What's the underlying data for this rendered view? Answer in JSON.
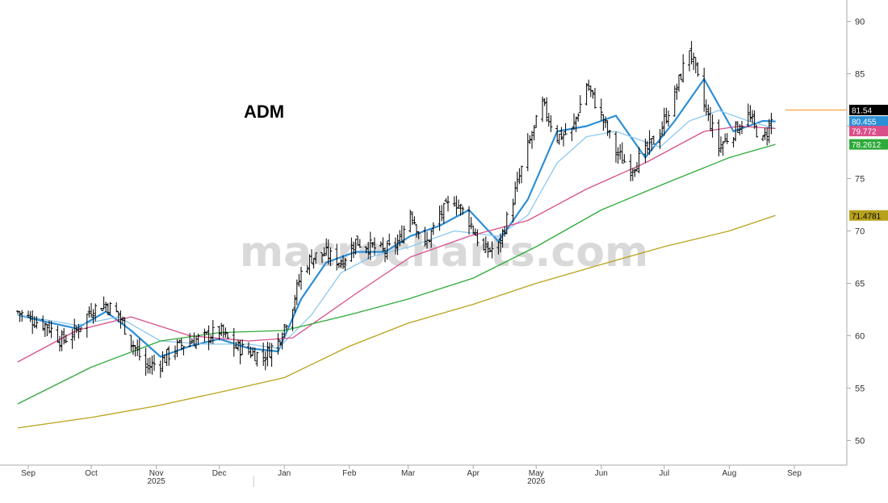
{
  "chart_data": {
    "type": "line",
    "title": "ADM",
    "watermark": "macrocharts.com",
    "x_start": "2025-08-27",
    "x_ticks": [
      {
        "label": "Sep",
        "date": "2025-09-01"
      },
      {
        "label": "Oct",
        "date": "2025-10-01"
      },
      {
        "label": "Nov",
        "date": "2025-11-01"
      },
      {
        "label": "Dec",
        "date": "2025-12-01"
      },
      {
        "label": "Jan",
        "date": "2026-01-01"
      },
      {
        "label": "Feb",
        "date": "2026-02-01"
      },
      {
        "label": "Mar",
        "date": "2026-03-01"
      },
      {
        "label": "Apr",
        "date": "2026-04-01"
      },
      {
        "label": "May",
        "date": "2026-05-01"
      },
      {
        "label": "Jun",
        "date": "2026-06-01"
      },
      {
        "label": "Jul",
        "date": "2026-07-01"
      },
      {
        "label": "Aug",
        "date": "2026-08-01"
      },
      {
        "label": "Sep",
        "date": "2026-09-01"
      }
    ],
    "year_labels": [
      {
        "label": "2025",
        "date": "2025-11-01"
      },
      {
        "label": "2026",
        "date": "2026-05-01"
      }
    ],
    "year_divider_date": "2026-01-01",
    "y_ticks": [
      50,
      55,
      60,
      65,
      70,
      75,
      80,
      85,
      90
    ],
    "ylim": [
      47.5,
      92
    ],
    "grid": false,
    "price_series": {
      "name": "Price",
      "style": "OHLC bars",
      "color": "#000000",
      "anchors": [
        [
          "2025-08-27",
          62.3
        ],
        [
          "2025-09-03",
          61.5
        ],
        [
          "2025-09-10",
          61.0
        ],
        [
          "2025-09-17",
          59.5
        ],
        [
          "2025-09-24",
          60.5
        ],
        [
          "2025-10-01",
          62.5
        ],
        [
          "2025-10-08",
          63.0
        ],
        [
          "2025-10-14",
          62.0
        ],
        [
          "2025-10-20",
          59.5
        ],
        [
          "2025-10-27",
          57.0
        ],
        [
          "2025-11-03",
          57.5
        ],
        [
          "2025-11-10",
          58.8
        ],
        [
          "2025-11-17",
          59.5
        ],
        [
          "2025-11-24",
          59.8
        ],
        [
          "2025-12-01",
          60.5
        ],
        [
          "2025-12-08",
          59.0
        ],
        [
          "2025-12-15",
          58.5
        ],
        [
          "2025-12-22",
          58.0
        ],
        [
          "2025-12-29",
          59.5
        ],
        [
          "2026-01-05",
          63.0
        ],
        [
          "2026-01-09",
          66.0
        ],
        [
          "2026-01-14",
          67.5
        ],
        [
          "2026-01-21",
          67.8
        ],
        [
          "2026-01-28",
          67.0
        ],
        [
          "2026-02-04",
          69.0
        ],
        [
          "2026-02-11",
          68.5
        ],
        [
          "2026-02-18",
          68.0
        ],
        [
          "2026-02-25",
          69.0
        ],
        [
          "2026-03-02",
          72.0
        ],
        [
          "2026-03-09",
          68.5
        ],
        [
          "2026-03-16",
          71.5
        ],
        [
          "2026-03-23",
          73.0
        ],
        [
          "2026-03-30",
          71.0
        ],
        [
          "2026-04-06",
          68.0
        ],
        [
          "2026-04-13",
          68.5
        ],
        [
          "2026-04-20",
          73.0
        ],
        [
          "2026-04-27",
          78.0
        ],
        [
          "2026-05-04",
          82.0
        ],
        [
          "2026-05-11",
          79.0
        ],
        [
          "2026-05-18",
          79.5
        ],
        [
          "2026-05-25",
          84.0
        ],
        [
          "2026-06-01",
          81.0
        ],
        [
          "2026-06-08",
          77.5
        ],
        [
          "2026-06-15",
          76.0
        ],
        [
          "2026-06-22",
          77.5
        ],
        [
          "2026-06-29",
          79.5
        ],
        [
          "2026-07-06",
          83.0
        ],
        [
          "2026-07-13",
          87.5
        ],
        [
          "2026-07-20",
          82.0
        ],
        [
          "2026-07-27",
          78.0
        ],
        [
          "2026-08-03",
          79.5
        ],
        [
          "2026-08-10",
          81.0
        ],
        [
          "2026-08-17",
          78.5
        ],
        [
          "2026-08-23",
          81.54
        ]
      ]
    },
    "series": [
      {
        "color": "#2b8fd6",
        "value": 80.455,
        "anchors": [
          [
            "2025-08-27",
            62.0
          ],
          [
            "2025-09-10",
            61.3
          ],
          [
            "2025-09-24",
            60.7
          ],
          [
            "2025-10-08",
            62.3
          ],
          [
            "2025-10-20",
            60.5
          ],
          [
            "2025-11-03",
            58.0
          ],
          [
            "2025-11-17",
            59.0
          ],
          [
            "2025-12-01",
            59.7
          ],
          [
            "2025-12-15",
            58.8
          ],
          [
            "2025-12-29",
            58.5
          ],
          [
            "2026-01-09",
            63.5
          ],
          [
            "2026-01-21",
            67.0
          ],
          [
            "2026-02-04",
            68.0
          ],
          [
            "2026-02-18",
            68.0
          ],
          [
            "2026-03-02",
            69.5
          ],
          [
            "2026-03-16",
            70.5
          ],
          [
            "2026-03-30",
            72.0
          ],
          [
            "2026-04-13",
            69.0
          ],
          [
            "2026-04-27",
            73.0
          ],
          [
            "2026-05-11",
            79.5
          ],
          [
            "2026-05-25",
            80.0
          ],
          [
            "2026-06-08",
            81.0
          ],
          [
            "2026-06-22",
            77.0
          ],
          [
            "2026-07-06",
            80.5
          ],
          [
            "2026-07-20",
            84.5
          ],
          [
            "2026-08-03",
            79.5
          ],
          [
            "2026-08-17",
            80.5
          ],
          [
            "2026-08-23",
            80.455
          ]
        ]
      },
      {
        "color": "#8ec8f0",
        "value": 79.772,
        "anchors": [
          [
            "2025-08-27",
            62.0
          ],
          [
            "2025-09-24",
            61.0
          ],
          [
            "2025-10-14",
            61.8
          ],
          [
            "2025-11-03",
            59.5
          ],
          [
            "2025-11-24",
            59.2
          ],
          [
            "2025-12-15",
            59.2
          ],
          [
            "2025-12-29",
            58.8
          ],
          [
            "2026-01-14",
            62.0
          ],
          [
            "2026-01-28",
            66.0
          ],
          [
            "2026-02-11",
            67.5
          ],
          [
            "2026-03-02",
            68.5
          ],
          [
            "2026-03-23",
            70.0
          ],
          [
            "2026-04-13",
            69.5
          ],
          [
            "2026-04-27",
            71.5
          ],
          [
            "2026-05-11",
            76.5
          ],
          [
            "2026-05-25",
            79.0
          ],
          [
            "2026-06-08",
            79.5
          ],
          [
            "2026-06-29",
            78.0
          ],
          [
            "2026-07-13",
            80.5
          ],
          [
            "2026-07-27",
            81.5
          ],
          [
            "2026-08-10",
            80.5
          ],
          [
            "2026-08-23",
            79.772
          ]
        ]
      },
      {
        "color": "#d94f8a",
        "value": 79.772,
        "anchors": [
          [
            "2025-08-27",
            57.5
          ],
          [
            "2025-09-24",
            60.5
          ],
          [
            "2025-10-20",
            61.8
          ],
          [
            "2025-11-17",
            60.0
          ],
          [
            "2025-12-15",
            59.5
          ],
          [
            "2026-01-05",
            59.8
          ],
          [
            "2026-02-04",
            64.0
          ],
          [
            "2026-03-02",
            67.5
          ],
          [
            "2026-03-30",
            69.5
          ],
          [
            "2026-04-27",
            71.0
          ],
          [
            "2026-05-25",
            74.0
          ],
          [
            "2026-06-22",
            76.5
          ],
          [
            "2026-07-20",
            79.5
          ],
          [
            "2026-08-06",
            80.0
          ],
          [
            "2026-08-23",
            79.772
          ]
        ]
      },
      {
        "color": "#2eaa3a",
        "value": 78.2612,
        "anchors": [
          [
            "2025-08-27",
            53.5
          ],
          [
            "2025-10-01",
            57.0
          ],
          [
            "2025-11-03",
            59.5
          ],
          [
            "2025-12-01",
            60.3
          ],
          [
            "2026-01-01",
            60.5
          ],
          [
            "2026-02-01",
            62.0
          ],
          [
            "2026-03-01",
            63.5
          ],
          [
            "2026-04-01",
            65.5
          ],
          [
            "2026-05-01",
            68.5
          ],
          [
            "2026-06-01",
            72.0
          ],
          [
            "2026-07-01",
            74.5
          ],
          [
            "2026-08-01",
            77.0
          ],
          [
            "2026-08-23",
            78.2612
          ]
        ]
      },
      {
        "color": "#b8a21c",
        "value": 71.4781,
        "anchors": [
          [
            "2025-08-27",
            51.2
          ],
          [
            "2025-10-01",
            52.2
          ],
          [
            "2025-11-01",
            53.3
          ],
          [
            "2025-12-01",
            54.6
          ],
          [
            "2026-01-01",
            56.0
          ],
          [
            "2026-02-01",
            59.0
          ],
          [
            "2026-03-01",
            61.2
          ],
          [
            "2026-04-01",
            63.0
          ],
          [
            "2026-05-01",
            65.0
          ],
          [
            "2026-06-01",
            66.8
          ],
          [
            "2026-07-01",
            68.5
          ],
          [
            "2026-08-01",
            70.0
          ],
          [
            "2026-08-23",
            71.4781
          ]
        ]
      }
    ],
    "value_labels": [
      {
        "text": "81.54",
        "value": 81.54,
        "bg": "#000000",
        "fg": "#ffffff"
      },
      {
        "text": "80.455",
        "value": 80.455,
        "bg": "#2b8fd6",
        "fg": "#ffffff"
      },
      {
        "text": "79.772",
        "value": 79.772,
        "bg": "#d94f8a",
        "fg": "#ffffff"
      },
      {
        "text": "78.2612",
        "value": 78.2612,
        "bg": "#2eaa3a",
        "fg": "#ffffff"
      },
      {
        "text": "71.4781",
        "value": 71.4781,
        "bg": "#b8a21c",
        "fg": "#000000"
      }
    ],
    "last_price_line_color": "#f2a23a",
    "axis_color": "#aaaaaa",
    "text_color": "#333333"
  }
}
